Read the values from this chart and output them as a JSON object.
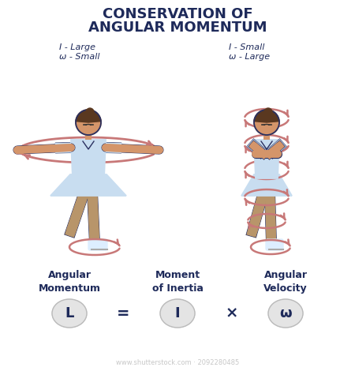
{
  "title_line1": "CONSERVATION OF",
  "title_line2": "ANGULAR MOMENTUM",
  "title_color": "#1e2a5a",
  "title_fontsize": 13,
  "bg_color": "#ffffff",
  "left_label_line1": "I - Large",
  "left_label_line2": "ω - Small",
  "right_label_line1": "I - Small",
  "right_label_line2": "ω - Large",
  "label_color": "#1e2a5a",
  "label_fontsize": 8,
  "arrow_color": "#c87878",
  "skater_outline": "#2a3060",
  "skater_skin": "#d4956a",
  "skater_dress": "#c8ddf0",
  "skater_hair": "#5a3820",
  "skater_legging": "#b8956a",
  "skate_color": "#ddeeff",
  "formula_labels": [
    "Angular\nMomentum",
    "Moment\nof Inertia",
    "Angular\nVelocity"
  ],
  "formula_symbols": [
    "L",
    "I",
    "ω"
  ],
  "formula_operators": [
    "=",
    "×"
  ],
  "formula_label_color": "#1e2a5a",
  "formula_circle_color": "#e4e4e4",
  "formula_fontsize": 9,
  "formula_symbol_fontsize": 13,
  "watermark": "www.shutterstock.com · 2092280485",
  "watermark_color": "#c8c8c8",
  "watermark_fontsize": 6,
  "fig_width": 4.5,
  "fig_height": 4.7,
  "dpi": 100
}
